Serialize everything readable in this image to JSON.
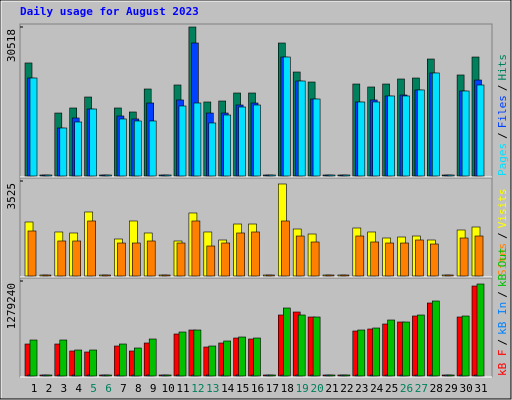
{
  "legend_separator": "/",
  "chart_data": [
    {
      "type": "bar",
      "title": "Daily usage for August 2023",
      "ylim": [
        0,
        30518
      ],
      "yticks": [
        30518
      ],
      "legend_reversed": true,
      "series": [
        {
          "name": "Hits",
          "color": "#00805C",
          "values": [
            23150,
            0,
            12900,
            13930,
            16180,
            0,
            13930,
            13110,
            17820,
            0,
            18640,
            30518,
            15160,
            15360,
            17000,
            17000,
            0,
            27240,
            21300,
            19250,
            0,
            0,
            18840,
            18230,
            18840,
            19870,
            20070,
            23960,
            0,
            20690,
            24370
          ]
        },
        {
          "name": "Files",
          "color": "#0040FF",
          "values": [
            20070,
            0,
            9830,
            11880,
            13720,
            0,
            12290,
            11680,
            14950,
            0,
            15570,
            27240,
            12900,
            12900,
            14540,
            14950,
            0,
            24370,
            19460,
            15770,
            0,
            0,
            15160,
            15570,
            16390,
            16590,
            17620,
            21100,
            0,
            17410,
            19660
          ]
        },
        {
          "name": "Pages",
          "color": "#00E0FF",
          "values": [
            20070,
            0,
            9830,
            11060,
            13720,
            0,
            11680,
            11270,
            11270,
            0,
            14340,
            14950,
            10860,
            12490,
            14130,
            14540,
            0,
            24370,
            19460,
            15770,
            0,
            0,
            15160,
            15160,
            16390,
            16390,
            17620,
            21100,
            0,
            17410,
            18640
          ]
        }
      ]
    },
    {
      "type": "bar",
      "ylim": [
        0,
        3525
      ],
      "yticks": [
        3525
      ],
      "legend_reversed": true,
      "series": [
        {
          "name": "Visits",
          "color": "#FFFF00",
          "values": [
            2004,
            0,
            1633,
            1596,
            2375,
            0,
            1373,
            2041,
            1596,
            0,
            1299,
            2338,
            1633,
            1336,
            1929,
            1929,
            0,
            3414,
            1744,
            1558,
            0,
            0,
            1781,
            1633,
            1410,
            1447,
            1484,
            1336,
            0,
            1707,
            1818
          ]
        },
        {
          "name": "Sites",
          "color": "#FF8000",
          "values": [
            1670,
            0,
            1299,
            1299,
            2041,
            0,
            1224,
            1224,
            1299,
            0,
            1224,
            2041,
            1113,
            1224,
            1596,
            1633,
            0,
            2041,
            1484,
            1262,
            0,
            0,
            1484,
            1262,
            1224,
            1224,
            1336,
            1187,
            0,
            1410,
            1484
          ]
        }
      ]
    },
    {
      "type": "bar",
      "ylim": [
        0,
        1279240
      ],
      "yticks": [
        1279240
      ],
      "legend_reversed": false,
      "categories": [
        "1",
        "2",
        "3",
        "4",
        "5",
        "6",
        "7",
        "8",
        "9",
        "10",
        "11",
        "12",
        "13",
        "14",
        "15",
        "16",
        "17",
        "18",
        "19",
        "20",
        "21",
        "22",
        "23",
        "24",
        "25",
        "26",
        "27",
        "28",
        "29",
        "30",
        "31"
      ],
      "category_colors": [
        "#000000",
        "#000000",
        "#000000",
        "#000000",
        "#00805C",
        "#00805C",
        "#000000",
        "#000000",
        "#000000",
        "#000000",
        "#000000",
        "#00805C",
        "#00805C",
        "#000000",
        "#000000",
        "#000000",
        "#000000",
        "#000000",
        "#00805C",
        "#00805C",
        "#000000",
        "#000000",
        "#000000",
        "#000000",
        "#000000",
        "#00805C",
        "#00805C",
        "#000000",
        "#000000",
        "#000000",
        "#000000"
      ],
      "series": [
        {
          "name": "kB F",
          "color": "#FF0000",
          "values": [
            430900,
            0,
            430900,
            336700,
            323200,
            0,
            404000,
            336700,
            444400,
            0,
            565600,
            619400,
            390500,
            444400,
            511700,
            498200,
            0,
            821400,
            861800,
            794500,
            0,
            0,
            606000,
            632900,
            700200,
            727200,
            808000,
            983000,
            0,
            794500,
            1211900
          ]
        },
        {
          "name": "kB In",
          "color": "#0080FF",
          "values": [
            0,
            0,
            0,
            0,
            0,
            0,
            0,
            0,
            0,
            0,
            0,
            0,
            0,
            0,
            0,
            0,
            0,
            0,
            0,
            0,
            0,
            0,
            0,
            0,
            0,
            0,
            0,
            0,
            0,
            0,
            0
          ]
        },
        {
          "name": "kB Out",
          "color": "#00C000",
          "values": [
            484800,
            0,
            484800,
            350100,
            350100,
            0,
            430900,
            377000,
            498200,
            0,
            592500,
            619400,
            404000,
            471300,
            525200,
            511700,
            0,
            915700,
            821400,
            794500,
            0,
            0,
            619400,
            646400,
            754100,
            727200,
            821400,
            1009900,
            0,
            808000,
            1238900
          ]
        }
      ]
    }
  ]
}
